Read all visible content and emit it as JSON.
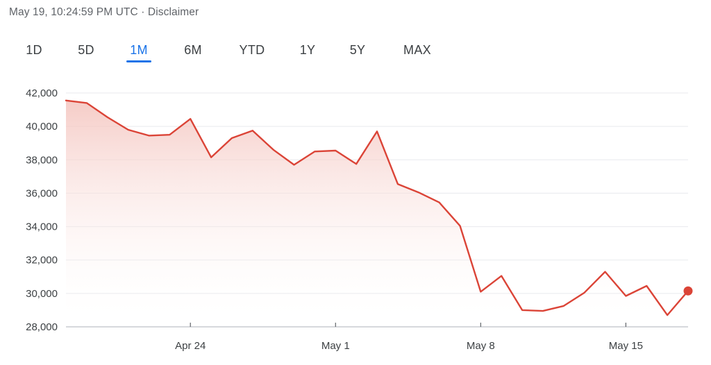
{
  "header": {
    "timestamp": "May 19, 10:24:59 PM UTC",
    "separator": "·",
    "disclaimer": "Disclaimer"
  },
  "tabs": [
    {
      "label": "1D",
      "active": false
    },
    {
      "label": "5D",
      "active": false
    },
    {
      "label": "1M",
      "active": true
    },
    {
      "label": "6M",
      "active": false
    },
    {
      "label": "YTD",
      "active": false
    },
    {
      "label": "1Y",
      "active": false
    },
    {
      "label": "5Y",
      "active": false
    },
    {
      "label": "MAX",
      "active": false
    }
  ],
  "colors": {
    "line": "#db4437",
    "fill_top": "#f4c3bd",
    "grid": "#e8eaed",
    "axis": "#bdc1c6",
    "active_tab": "#1a73e8"
  },
  "chart_data": {
    "type": "area",
    "title": "",
    "xlabel": "",
    "ylabel": "",
    "ylim": [
      28000,
      42000
    ],
    "yticks": [
      28000,
      30000,
      32000,
      34000,
      36000,
      38000,
      40000,
      42000
    ],
    "ytick_labels": [
      "28,000",
      "30,000",
      "32,000",
      "34,000",
      "36,000",
      "38,000",
      "40,000",
      "42,000"
    ],
    "xticks": [
      {
        "label": "Apr 24",
        "day": 6
      },
      {
        "label": "May 1",
        "day": 13
      },
      {
        "label": "May 8",
        "day": 20
      },
      {
        "label": "May 15",
        "day": 27
      }
    ],
    "grid": true,
    "legend": "none",
    "series": [
      {
        "x": [
          0,
          1,
          2,
          3,
          4,
          5,
          6,
          7,
          8,
          9,
          10,
          11,
          12,
          13,
          14,
          15,
          16,
          17,
          18,
          19,
          20,
          21,
          22,
          23,
          24,
          25,
          26,
          27,
          28,
          29,
          30
        ],
        "values": [
          41550,
          41400,
          40550,
          39800,
          39450,
          39500,
          40450,
          38150,
          39300,
          39750,
          38600,
          37700,
          38500,
          38550,
          37750,
          39700,
          36550,
          36050,
          35450,
          34050,
          30100,
          31050,
          29000,
          28950,
          29250,
          30050,
          31300,
          29850,
          30450,
          28700,
          30150
        ]
      }
    ]
  }
}
